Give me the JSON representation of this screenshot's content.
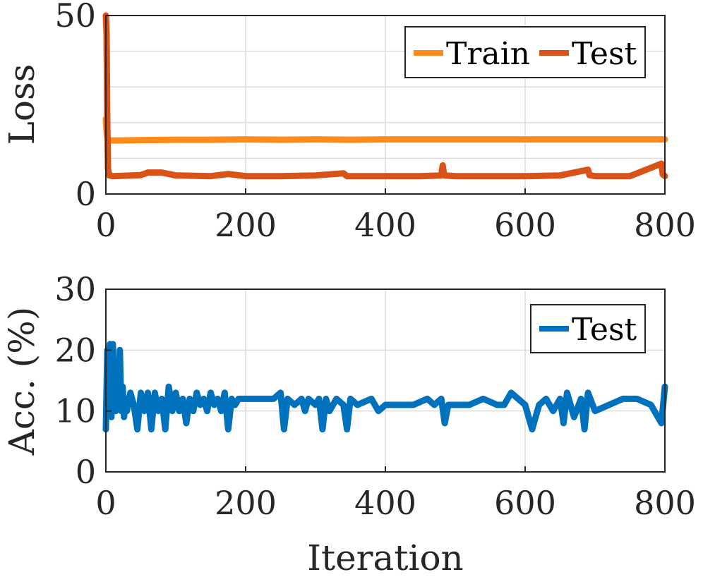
{
  "chart_data": [
    {
      "type": "line",
      "ylabel": "Loss",
      "xlabel": "",
      "xlim": [
        0,
        800
      ],
      "ylim": [
        0,
        50
      ],
      "xticks": [
        "0",
        "200",
        "400",
        "600",
        "800"
      ],
      "yticks": [
        "0",
        "50"
      ],
      "grid": true,
      "legend": "top-right",
      "series": [
        {
          "name": "Train",
          "color": "#FF8C1A",
          "x": [
            0,
            1,
            2,
            3,
            20,
            50,
            100,
            150,
            200,
            250,
            300,
            350,
            400,
            450,
            500,
            550,
            600,
            650,
            700,
            750,
            800
          ],
          "y": [
            21,
            18,
            15.5,
            15,
            15,
            15.1,
            15.2,
            15.2,
            15.3,
            15.2,
            15.3,
            15.2,
            15.3,
            15.3,
            15.3,
            15.3,
            15.3,
            15.3,
            15.3,
            15.3,
            15.3
          ]
        },
        {
          "name": "Test",
          "color": "#D95319",
          "x": [
            0,
            1,
            2,
            3,
            5,
            10,
            50,
            60,
            80,
            100,
            150,
            175,
            200,
            250,
            300,
            340,
            345,
            400,
            450,
            480,
            482,
            484,
            500,
            550,
            600,
            650,
            690,
            692,
            700,
            750,
            795,
            797,
            800
          ],
          "y": [
            50,
            45,
            20,
            7,
            5.2,
            5,
            5.3,
            6,
            6,
            5.2,
            5,
            5.6,
            5,
            5,
            5.2,
            5.8,
            5,
            5,
            5,
            5.2,
            8,
            5.2,
            5,
            5,
            5,
            5.2,
            6.8,
            5.3,
            5,
            5,
            8.5,
            5.5,
            5
          ]
        }
      ]
    },
    {
      "type": "line",
      "ylabel": "Acc. (%)",
      "xlabel": "Iteration",
      "xlim": [
        0,
        800
      ],
      "ylim": [
        0,
        30
      ],
      "xticks": [
        "0",
        "200",
        "400",
        "600",
        "800"
      ],
      "yticks": [
        "0",
        "10",
        "20",
        "30"
      ],
      "grid": true,
      "legend": "top-right",
      "series": [
        {
          "name": "Test",
          "color": "#0072BD",
          "x": [
            0,
            2,
            4,
            6,
            8,
            10,
            12,
            14,
            16,
            18,
            20,
            22,
            24,
            26,
            28,
            30,
            35,
            40,
            45,
            50,
            55,
            60,
            65,
            70,
            75,
            80,
            85,
            90,
            95,
            100,
            105,
            110,
            115,
            120,
            125,
            130,
            135,
            140,
            145,
            150,
            155,
            160,
            165,
            170,
            175,
            180,
            185,
            190,
            200,
            220,
            240,
            250,
            255,
            260,
            270,
            280,
            285,
            290,
            300,
            305,
            310,
            315,
            320,
            330,
            340,
            345,
            350,
            360,
            380,
            390,
            400,
            420,
            440,
            460,
            470,
            480,
            485,
            490,
            500,
            520,
            540,
            560,
            570,
            580,
            600,
            610,
            620,
            630,
            640,
            650,
            655,
            660,
            670,
            680,
            685,
            690,
            700,
            720,
            740,
            760,
            780,
            795,
            800
          ],
          "y": [
            7,
            20,
            12,
            21,
            9,
            21,
            13,
            10,
            16,
            11,
            20,
            10,
            14,
            9,
            12,
            10,
            13,
            11,
            7,
            13,
            10,
            13,
            7,
            13,
            10,
            12,
            7,
            14,
            10,
            13,
            10,
            12,
            8,
            12,
            10,
            13,
            11,
            12,
            10,
            13,
            11,
            12,
            10,
            13,
            7,
            12,
            11,
            12,
            12,
            12,
            12,
            13,
            7,
            12,
            11,
            12,
            10,
            12,
            11,
            12,
            7,
            12,
            10,
            12,
            11,
            7,
            12,
            11,
            12,
            10,
            11,
            11,
            11,
            12,
            11,
            12,
            8,
            11,
            11,
            11,
            12,
            11,
            11,
            13,
            11,
            7,
            11,
            12,
            10,
            12,
            8,
            13,
            9,
            12,
            7,
            13,
            10,
            11,
            12,
            12,
            11,
            8,
            14
          ]
        }
      ]
    }
  ]
}
